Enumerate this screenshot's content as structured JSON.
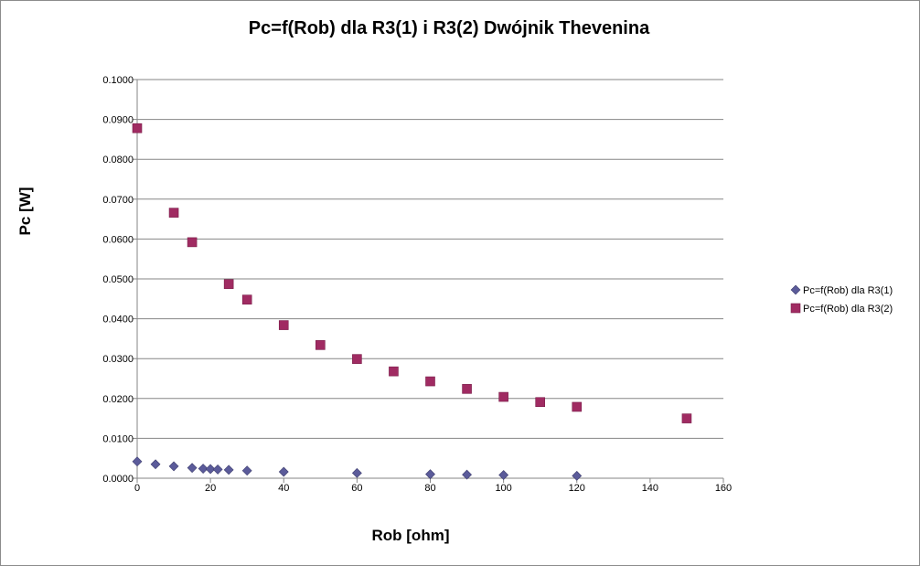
{
  "chart_data": {
    "type": "scatter",
    "title": "Pc=f(Rob) dla R3(1) i R3(2) Dwójnik Thevenina",
    "xlabel": "Rob [ohm]",
    "ylabel": "Pc [W]",
    "xlim": [
      0,
      160
    ],
    "ylim": [
      0,
      0.1
    ],
    "x_ticks": [
      "0",
      "20",
      "40",
      "60",
      "80",
      "100",
      "120",
      "140",
      "160"
    ],
    "y_ticks": [
      "0.0000",
      "0.0100",
      "0.0200",
      "0.0300",
      "0.0400",
      "0.0500",
      "0.0600",
      "0.0700",
      "0.0800",
      "0.0900",
      "0.1000"
    ],
    "grid": "horizontal major gridlines",
    "legend_position": "right",
    "series": [
      {
        "name": "Pc=f(Rob) dla R3(1)",
        "marker": "diamond",
        "color": "#5b5b9a",
        "points": [
          [
            0,
            0.0042
          ],
          [
            5,
            0.0035
          ],
          [
            10,
            0.003
          ],
          [
            15,
            0.0026
          ],
          [
            18,
            0.0024
          ],
          [
            20,
            0.0023
          ],
          [
            22,
            0.0022
          ],
          [
            25,
            0.0021
          ],
          [
            30,
            0.0019
          ],
          [
            40,
            0.0016
          ],
          [
            60,
            0.0013
          ],
          [
            80,
            0.001
          ],
          [
            90,
            0.0009
          ],
          [
            100,
            0.0008
          ],
          [
            120,
            0.0006
          ]
        ]
      },
      {
        "name": "Pc=f(Rob) dla R3(2)",
        "marker": "square",
        "color": "#a02b62",
        "points": [
          [
            0,
            0.0878
          ],
          [
            10,
            0.0666
          ],
          [
            15,
            0.0592
          ],
          [
            25,
            0.0487
          ],
          [
            30,
            0.0448
          ],
          [
            40,
            0.0384
          ],
          [
            50,
            0.0334
          ],
          [
            60,
            0.0299
          ],
          [
            70,
            0.0268
          ],
          [
            80,
            0.0243
          ],
          [
            90,
            0.0224
          ],
          [
            100,
            0.0204
          ],
          [
            110,
            0.0191
          ],
          [
            120,
            0.0179
          ],
          [
            150,
            0.015
          ]
        ]
      }
    ]
  }
}
